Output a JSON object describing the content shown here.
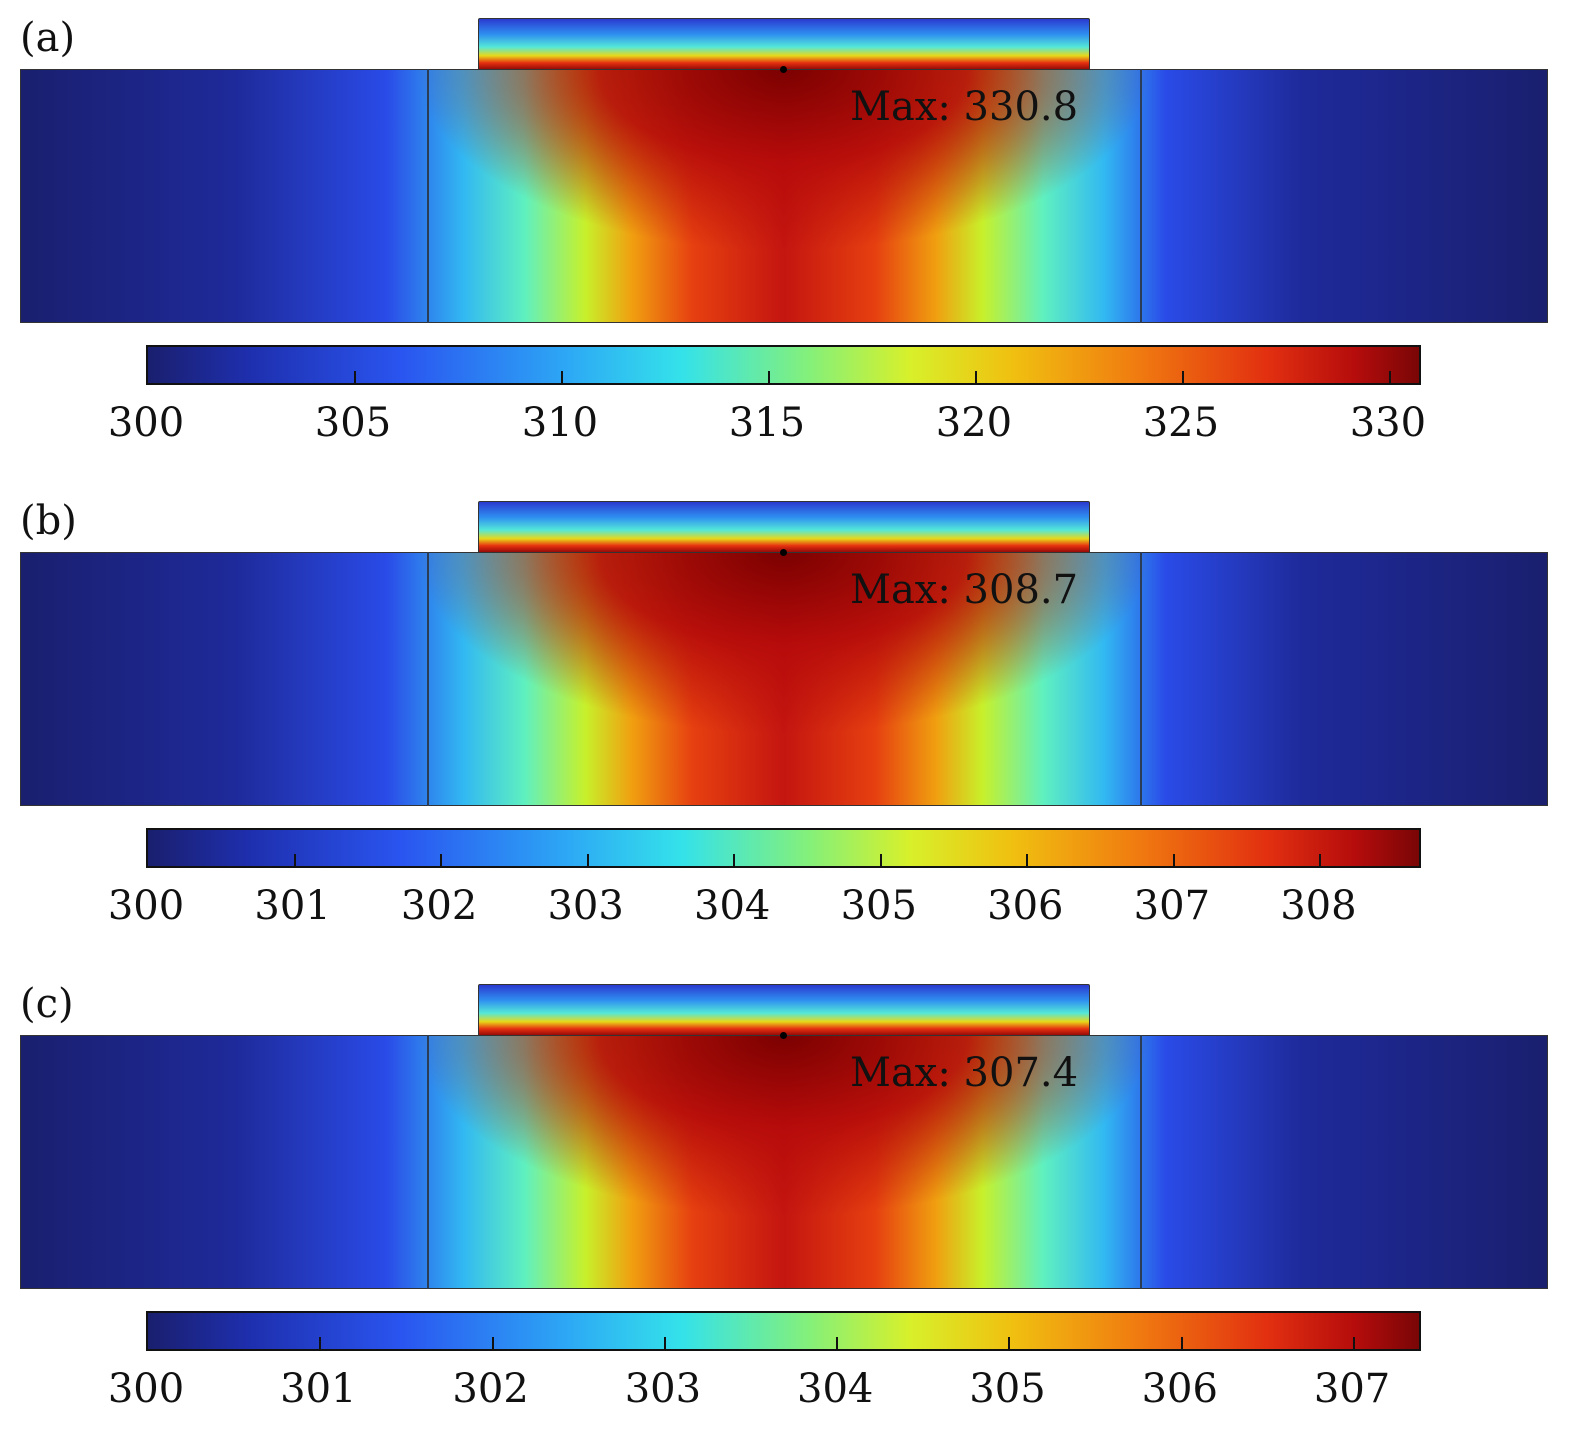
{
  "panels": [
    {
      "label": "(a)",
      "max_text": "Max: 330.8",
      "colorbar": {
        "min": 300,
        "max": 330.8,
        "ticks": [
          "300",
          "305",
          "310",
          "315",
          "320",
          "325",
          "330"
        ],
        "tick_values": [
          300,
          305,
          310,
          315,
          320,
          325,
          330
        ]
      }
    },
    {
      "label": "(b)",
      "max_text": "Max: 308.7",
      "colorbar": {
        "min": 300,
        "max": 308.7,
        "ticks": [
          "300",
          "301",
          "302",
          "303",
          "304",
          "305",
          "306",
          "307",
          "308"
        ],
        "tick_values": [
          300,
          301,
          302,
          303,
          304,
          305,
          306,
          307,
          308
        ]
      }
    },
    {
      "label": "(c)",
      "max_text": "Max: 307.4",
      "colorbar": {
        "min": 300,
        "max": 307.4,
        "ticks": [
          "300",
          "301",
          "302",
          "303",
          "304",
          "305",
          "306",
          "307"
        ],
        "tick_values": [
          300,
          301,
          302,
          303,
          304,
          305,
          306,
          307
        ]
      }
    }
  ],
  "colormap": "jet"
}
